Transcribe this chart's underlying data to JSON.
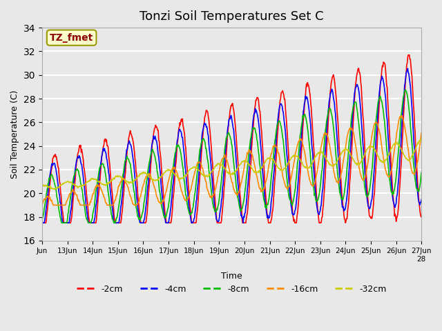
{
  "title": "Tonzi Soil Temperatures Set C",
  "xlabel": "Time",
  "ylabel": "Soil Temperature (C)",
  "ylim": [
    16,
    34
  ],
  "n_days": 15,
  "x_tick_positions": [
    0,
    1,
    2,
    3,
    4,
    5,
    6,
    7,
    8,
    9,
    10,
    11,
    12,
    13,
    14,
    15
  ],
  "x_tick_labels": [
    "Jun",
    "13Jun",
    "14Jun",
    "15Jun",
    "16Jun",
    "17Jun",
    "18Jun",
    "19Jun",
    "20Jun",
    "21Jun",
    "22Jun",
    "23Jun",
    "24Jun",
    "25Jun",
    "26Jun",
    "27Jun"
  ],
  "x_tick_extra_label": "28",
  "annotation_text": "TZ_fmet",
  "annotation_color": "#8B0000",
  "annotation_bg": "#FFFFCC",
  "line_colors": {
    "-2cm": "#FF0000",
    "-4cm": "#0000FF",
    "-8cm": "#00BB00",
    "-16cm": "#FF8C00",
    "-32cm": "#CCCC00"
  },
  "legend_labels": [
    "-2cm",
    "-4cm",
    "-8cm",
    "-16cm",
    "-32cm"
  ],
  "fig_bg_color": "#E8E8E8",
  "plot_bg_color": "#E8E8E8",
  "grid_color": "#FFFFFF",
  "title_fontsize": 13,
  "pts_per_day": 48
}
